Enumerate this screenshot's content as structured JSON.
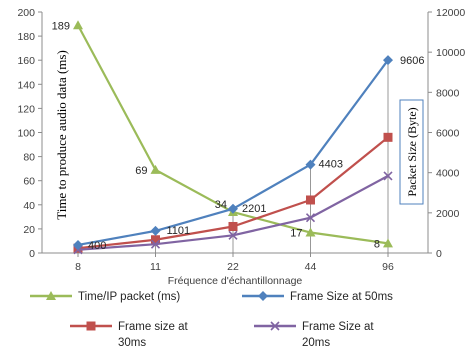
{
  "chart_data": {
    "type": "line",
    "categories": [
      "8",
      "11",
      "22",
      "44",
      "96"
    ],
    "xlabel": "Fréquence d'échantillonnage",
    "ylabel_left": "Time to produce audio data (ms)",
    "ylabel_right": "Packet Size (Byte)",
    "ylim_left": [
      0,
      200
    ],
    "yticks_left": [
      "0",
      "20",
      "40",
      "60",
      "80",
      "100",
      "120",
      "140",
      "160",
      "180",
      "200"
    ],
    "ylim_right": [
      0,
      12000
    ],
    "yticks_right": [
      "0",
      "2000",
      "4000",
      "6000",
      "8000",
      "10000",
      "12000"
    ],
    "grid": false,
    "legend_position": "bottom",
    "series": [
      {
        "name": "Time/IP packet (ms)",
        "axis": "left",
        "color": "#9bbb59",
        "marker": "triangle",
        "values": [
          189,
          69,
          34,
          17,
          8
        ],
        "labels": [
          "189",
          "69",
          "34",
          "17",
          "8"
        ]
      },
      {
        "name": "Frame Size at 50ms",
        "axis": "right",
        "color": "#4f81bd",
        "marker": "diamond",
        "values": [
          400,
          1101,
          2201,
          4403,
          9606
        ],
        "labels": [
          "400",
          "1101",
          "2201",
          "4403",
          "9606"
        ]
      },
      {
        "name": "Frame size at 30ms",
        "axis": "right",
        "color": "#c0504d",
        "marker": "square",
        "values": [
          240,
          660,
          1320,
          2640,
          5760
        ],
        "labels": []
      },
      {
        "name": "Frame Size at 20ms",
        "axis": "right",
        "color": "#8064a2",
        "marker": "x",
        "values": [
          160,
          440,
          880,
          1760,
          3840
        ],
        "labels": []
      }
    ],
    "legend_lines": [
      [
        "Time/IP packet (ms)"
      ],
      [
        "Frame Size at 50ms"
      ],
      [
        "Frame size at",
        "30ms"
      ],
      [
        "Frame Size at",
        "20ms"
      ]
    ]
  }
}
